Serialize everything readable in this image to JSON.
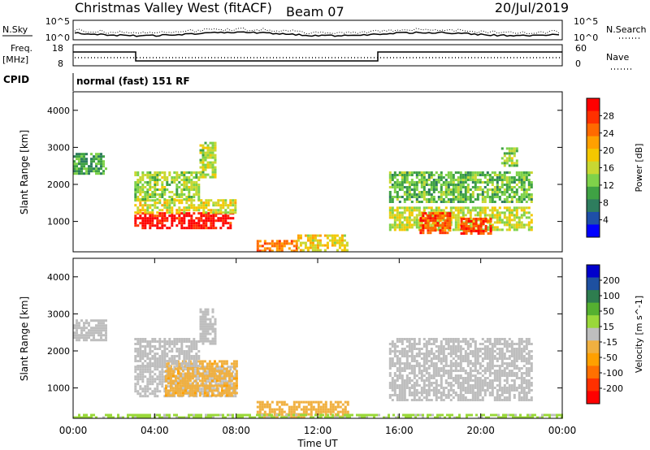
{
  "header": {
    "station": "Christmas Valley West (fitACF)",
    "beam": "Beam 07",
    "date": "20/Jul/2019"
  },
  "top_panels": {
    "nsky_label": "N.Sky",
    "nsearch_label": "N.Search",
    "noise_ticks": [
      "10^5",
      "10^0"
    ],
    "freq_label": "Freq.",
    "freq_unit": "[MHz]",
    "freq_ticks": [
      "18",
      "8"
    ],
    "nave_label": "Nave",
    "nave_ticks": [
      "60",
      "0"
    ],
    "cpid_label": "CPID",
    "cpid_text": "normal (fast) 151 RF"
  },
  "colors": {
    "power": [
      "#0000ff",
      "#1e4fa8",
      "#2e7d5e",
      "#3fa244",
      "#7fd24a",
      "#c8d832",
      "#f4c800",
      "#ffa000",
      "#ff6a00",
      "#ff3000",
      "#ff0000"
    ],
    "velocity": [
      "#0000cc",
      "#1e50a0",
      "#2e7d4f",
      "#55b030",
      "#9ad83a",
      "#bebebe",
      "#f0b040",
      "#ffa000",
      "#ff7000",
      "#ff3000",
      "#ff0000"
    ]
  },
  "chart_data": [
    {
      "type": "heatmap",
      "quantity": "Power",
      "ylabel": "Slant Range [km]",
      "xlim": [
        0,
        24
      ],
      "ylim": [
        180,
        4500
      ],
      "yticks": [
        "1000",
        "2000",
        "3000",
        "4000"
      ],
      "colorbar_label": "Power [dB]",
      "colorbar_ticks": [
        "4",
        "8",
        "12",
        "16",
        "20",
        "24",
        "28"
      ],
      "colorbar_range": [
        0,
        32
      ],
      "echo_regions": [
        {
          "t": [
            0.0,
            1.6
          ],
          "r": [
            2300,
            2850
          ],
          "level": 10
        },
        {
          "t": [
            3.0,
            7.8
          ],
          "r": [
            800,
            1250
          ],
          "level": 30
        },
        {
          "t": [
            3.0,
            8.0
          ],
          "r": [
            1250,
            1600
          ],
          "level": 17
        },
        {
          "t": [
            3.0,
            6.2
          ],
          "r": [
            1600,
            2350
          ],
          "level": 14
        },
        {
          "t": [
            6.2,
            7.0
          ],
          "r": [
            2200,
            3150
          ],
          "level": 15
        },
        {
          "t": [
            9.0,
            11.0
          ],
          "r": [
            200,
            500
          ],
          "level": 24
        },
        {
          "t": [
            11.0,
            13.5
          ],
          "r": [
            250,
            650
          ],
          "level": 18
        },
        {
          "t": [
            15.5,
            22.5
          ],
          "r": [
            800,
            1400
          ],
          "level": 16
        },
        {
          "t": [
            17.0,
            18.5
          ],
          "r": [
            700,
            1250
          ],
          "level": 26
        },
        {
          "t": [
            19.0,
            20.5
          ],
          "r": [
            700,
            1100
          ],
          "level": 27
        },
        {
          "t": [
            15.5,
            22.5
          ],
          "r": [
            1500,
            2350
          ],
          "level": 12
        },
        {
          "t": [
            21.0,
            21.8
          ],
          "r": [
            2500,
            3000
          ],
          "level": 14
        }
      ]
    },
    {
      "type": "heatmap",
      "quantity": "Velocity",
      "xlabel": "Time UT",
      "ylabel": "Slant Range [km]",
      "xlim": [
        0,
        24
      ],
      "ylim": [
        180,
        4500
      ],
      "xticks": [
        "00:00",
        "04:00",
        "08:00",
        "12:00",
        "16:00",
        "20:00",
        "00:00"
      ],
      "yticks": [
        "1000",
        "2000",
        "3000",
        "4000"
      ],
      "colorbar_label": "Velocity [m s^-1]",
      "colorbar_ticks": [
        "200",
        "100",
        "50",
        "15",
        "-15",
        "-50",
        "-100",
        "-200"
      ],
      "colorbar_range": [
        -250,
        250
      ],
      "echo_regions": [
        {
          "t": [
            0.0,
            1.6
          ],
          "r": [
            2300,
            2850
          ],
          "level": 0
        },
        {
          "t": [
            3.0,
            8.0
          ],
          "r": [
            800,
            1600
          ],
          "level": 0
        },
        {
          "t": [
            4.5,
            8.0
          ],
          "r": [
            800,
            1750
          ],
          "level": -60
        },
        {
          "t": [
            3.0,
            6.2
          ],
          "r": [
            1600,
            2350
          ],
          "level": 0
        },
        {
          "t": [
            6.2,
            7.0
          ],
          "r": [
            2200,
            3150
          ],
          "level": 0
        },
        {
          "t": [
            9.0,
            13.5
          ],
          "r": [
            200,
            650
          ],
          "level": -40
        },
        {
          "t": [
            15.5,
            22.5
          ],
          "r": [
            700,
            2350
          ],
          "level": 0
        },
        {
          "t": [
            0.0,
            24.0
          ],
          "r": [
            180,
            300
          ],
          "level": 30
        }
      ]
    }
  ]
}
